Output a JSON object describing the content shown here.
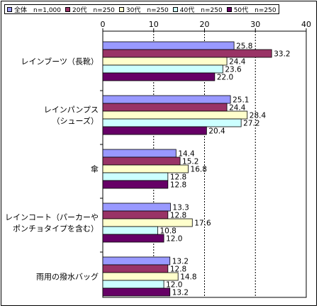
{
  "chart_data": {
    "type": "bar",
    "orientation": "horizontal",
    "categories": [
      [
        "レインブーツ（長靴）"
      ],
      [
        "レインパンプス",
        "（シューズ）"
      ],
      [
        "傘"
      ],
      [
        "レインコート（パーカーや",
        "ポンチョタイプを含む）"
      ],
      [
        "雨用の撥水バッグ"
      ]
    ],
    "series": [
      {
        "name": "全体　n=1,000",
        "color": "#9999ff",
        "values": [
          25.8,
          25.1,
          14.4,
          13.3,
          13.2
        ]
      },
      {
        "name": "20代　n=250",
        "color": "#993366",
        "values": [
          33.2,
          24.4,
          15.2,
          12.8,
          12.8
        ]
      },
      {
        "name": "30代　n=250",
        "color": "#ffffcc",
        "values": [
          24.4,
          28.4,
          16.8,
          17.6,
          14.8
        ]
      },
      {
        "name": "40代　n=250",
        "color": "#ccffff",
        "values": [
          23.6,
          27.2,
          12.8,
          10.8,
          12.0
        ]
      },
      {
        "name": "50代　n=250",
        "color": "#660066",
        "values": [
          22.0,
          20.4,
          12.8,
          12.0,
          13.2
        ]
      }
    ],
    "value_labels": [
      [
        "25.8",
        "33.2",
        "24.4",
        "23.6",
        "22.0"
      ],
      [
        "25.1",
        "24.4",
        "28.4",
        "27.2",
        "20.4"
      ],
      [
        "14.4",
        "15.2",
        "16.8",
        "12.8",
        "12.8"
      ],
      [
        "13.3",
        "12.8",
        "17.6",
        "10.8",
        "12.0"
      ],
      [
        "13.2",
        "12.8",
        "14.8",
        "12.0",
        "13.2"
      ]
    ],
    "xlim": [
      0,
      40
    ],
    "xticks": [
      0,
      10,
      20,
      30,
      40
    ],
    "xtick_labels": [
      "0",
      "10",
      "20",
      "30",
      "40"
    ],
    "grid": true,
    "legend": "top"
  }
}
